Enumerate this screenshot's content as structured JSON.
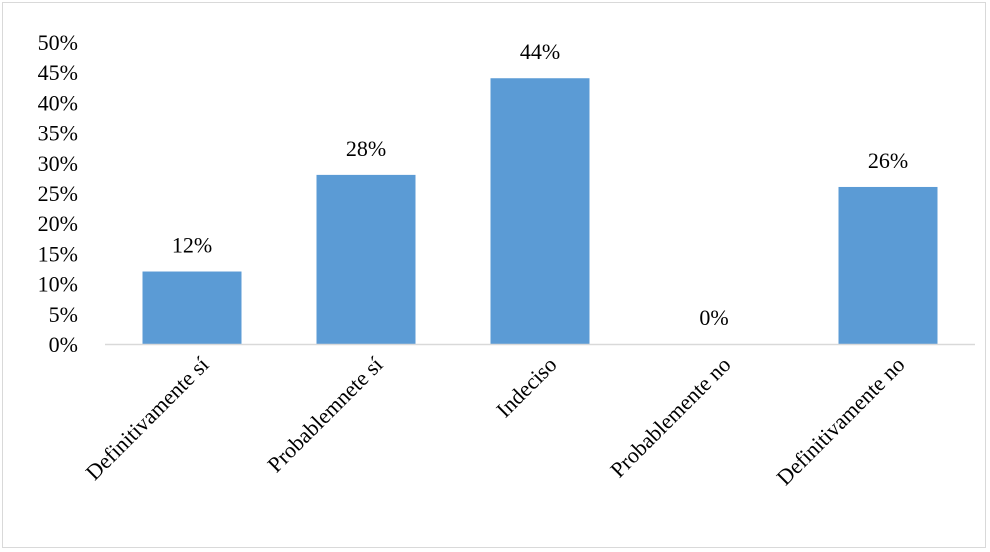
{
  "chart_data": {
    "type": "bar",
    "title": "",
    "xlabel": "",
    "ylabel": "",
    "categories": [
      "Definitivamente sí",
      "Probablemnete sí",
      "Indeciso",
      "Probablemente no",
      "Definitivamente no"
    ],
    "values": [
      12,
      28,
      44,
      0,
      26
    ],
    "data_labels": [
      "12%",
      "28%",
      "44%",
      "0%",
      "26%"
    ],
    "ylim": [
      0,
      50
    ],
    "yticks": [
      0,
      5,
      10,
      15,
      20,
      25,
      30,
      35,
      40,
      45,
      50
    ],
    "ytick_labels": [
      "0%",
      "5%",
      "10%",
      "15%",
      "20%",
      "25%",
      "30%",
      "35%",
      "40%",
      "45%",
      "50%"
    ],
    "bar_color": "#5b9bd5",
    "grid": false,
    "legend": "none"
  }
}
